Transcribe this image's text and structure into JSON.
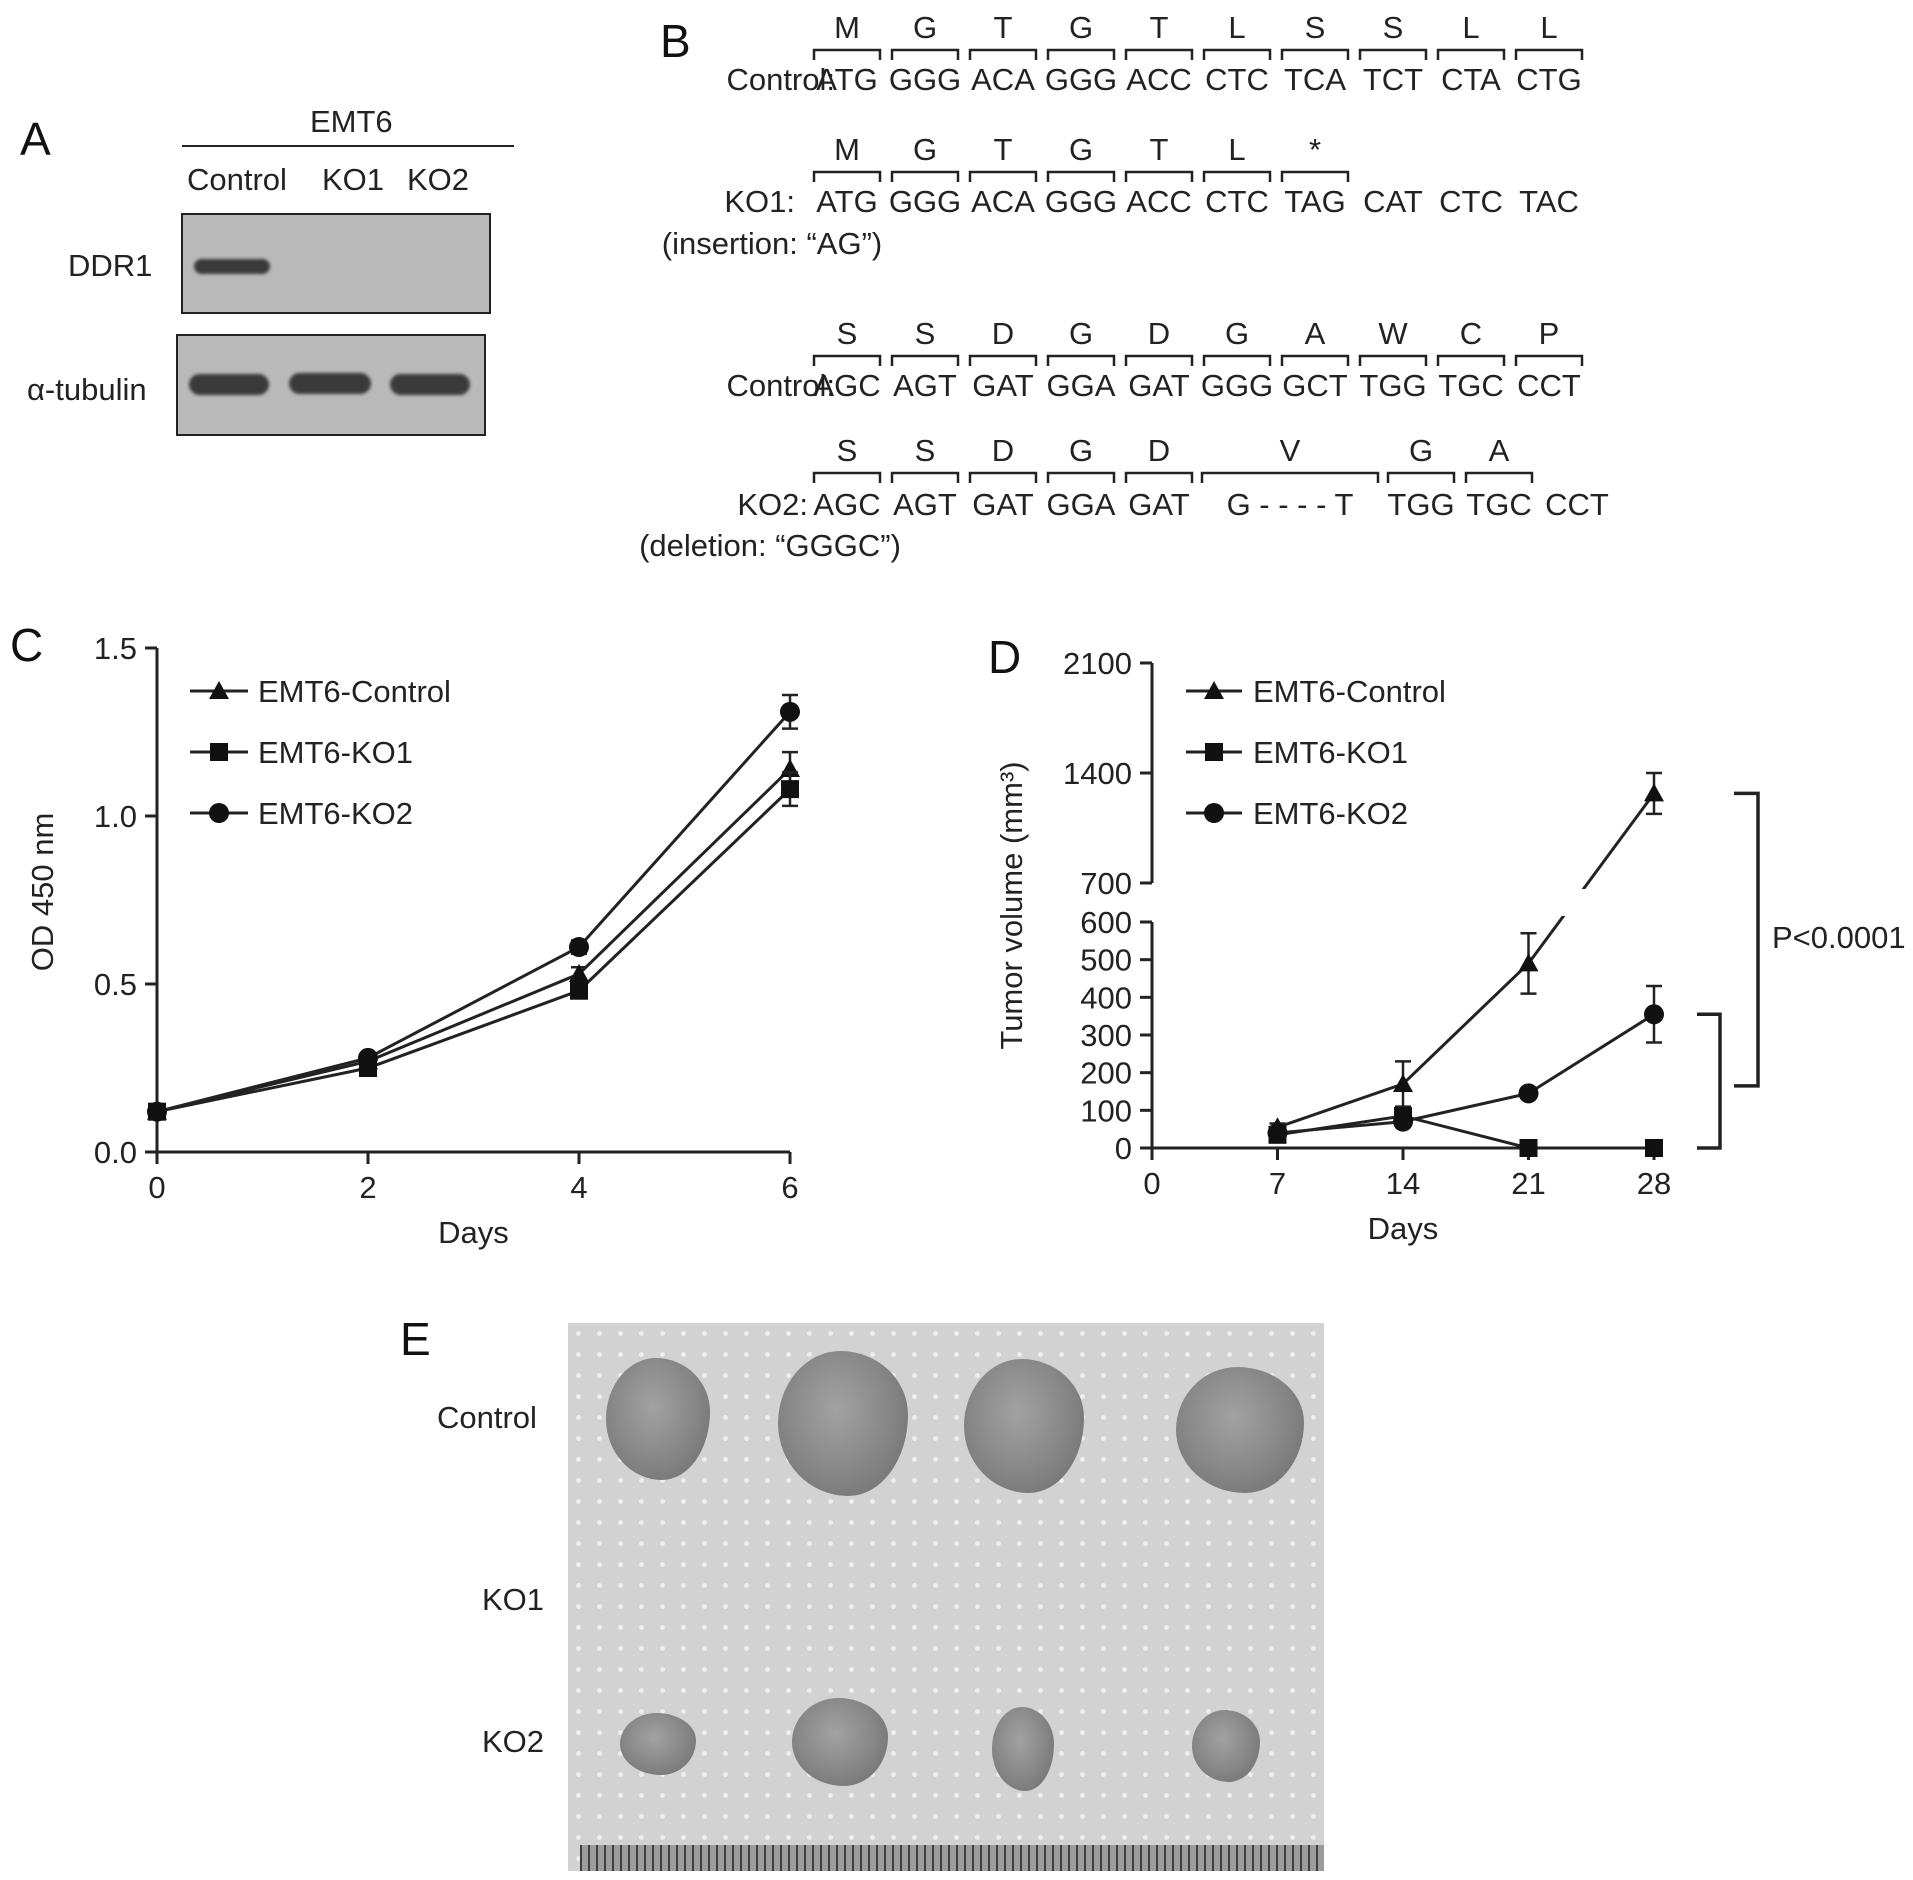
{
  "panels": {
    "A": "A",
    "B": "B",
    "C": "C",
    "D": "D",
    "E": "E"
  },
  "panelA": {
    "group_label": "EMT6",
    "lanes": [
      "Control",
      "KO1",
      "KO2"
    ],
    "rows": [
      "DDR1",
      "α-tubulin"
    ]
  },
  "panelB": {
    "blocks": [
      {
        "label": "Control:",
        "sublabel": "",
        "aa": [
          "M",
          "G",
          "T",
          "G",
          "T",
          "L",
          "S",
          "S",
          "L",
          "L"
        ],
        "codons": [
          "ATG",
          "GGG",
          "ACA",
          "GGG",
          "ACC",
          "CTC",
          "TCA",
          "TCT",
          "CTA",
          "CTG"
        ]
      },
      {
        "label": "KO1:",
        "sublabel": "(insertion: “AG”)",
        "aa": [
          "M",
          "G",
          "T",
          "G",
          "T",
          "L",
          "*"
        ],
        "codons": [
          "ATG",
          "GGG",
          "ACA",
          "GGG",
          "ACC",
          "CTC",
          "TAG",
          "CAT",
          "CTC",
          "TAC"
        ]
      },
      {
        "label": "Control:",
        "sublabel": "",
        "aa": [
          "S",
          "S",
          "D",
          "G",
          "D",
          "G",
          "A",
          "W",
          "C",
          "P"
        ],
        "codons": [
          "AGC",
          "AGT",
          "GAT",
          "GGA",
          "GAT",
          "GGG",
          "GCT",
          "TGG",
          "TGC",
          "CCT"
        ]
      },
      {
        "label": "KO2:",
        "sublabel": "(deletion: “GGGC”)",
        "aa": [
          "S",
          "S",
          "D",
          "G",
          "D",
          "V",
          "G",
          "A"
        ],
        "codons": [
          "AGC",
          "AGT",
          "GAT",
          "GGA",
          "GAT",
          "G - - - - T",
          "TGG",
          "TGC",
          "CCT"
        ]
      }
    ]
  },
  "chart_data": [
    {
      "type": "line",
      "panel": "C",
      "title": "",
      "xlabel": "Days",
      "ylabel": "OD 450 nm",
      "x": [
        0,
        2,
        4,
        6
      ],
      "xlim": [
        0,
        6
      ],
      "ylim": [
        0,
        1.5
      ],
      "xticks": [
        "0",
        "2",
        "4",
        "6"
      ],
      "yticks": [
        "0.0",
        "0.5",
        "1.0",
        "1.5"
      ],
      "legend": "top-left",
      "series": [
        {
          "name": "EMT6-Control",
          "marker": "triangle",
          "values": [
            0.12,
            0.27,
            0.53,
            1.14
          ],
          "errors": [
            0.01,
            0.01,
            0.02,
            0.05
          ]
        },
        {
          "name": "EMT6-KO1",
          "marker": "square",
          "values": [
            0.12,
            0.25,
            0.48,
            1.08
          ],
          "errors": [
            0.01,
            0.01,
            0.02,
            0.05
          ]
        },
        {
          "name": "EMT6-KO2",
          "marker": "circle",
          "values": [
            0.12,
            0.28,
            0.61,
            1.31
          ],
          "errors": [
            0.01,
            0.01,
            0.02,
            0.05
          ]
        }
      ]
    },
    {
      "type": "line",
      "panel": "D",
      "title": "",
      "xlabel": "Days",
      "ylabel": "Tumor volume (mm³)",
      "x": [
        7,
        14,
        21,
        28
      ],
      "xlim": [
        0,
        28
      ],
      "ylim": [
        0,
        2100
      ],
      "axis_break": [
        600,
        700
      ],
      "xticks": [
        "0",
        "7",
        "14",
        "21",
        "28"
      ],
      "yticks": [
        "0",
        "100",
        "200",
        "300",
        "400",
        "500",
        "600",
        "700",
        "1400",
        "2100"
      ],
      "legend": "top-left",
      "annotation": "P<0.0001",
      "series": [
        {
          "name": "EMT6-Control",
          "marker": "triangle",
          "values": [
            55,
            170,
            490,
            1270
          ],
          "errors": [
            10,
            60,
            80,
            130
          ]
        },
        {
          "name": "EMT6-KO1",
          "marker": "square",
          "values": [
            35,
            85,
            0,
            0
          ],
          "errors": [
            8,
            12,
            0,
            0
          ]
        },
        {
          "name": "EMT6-KO2",
          "marker": "circle",
          "values": [
            40,
            70,
            145,
            355
          ],
          "errors": [
            8,
            10,
            10,
            75
          ]
        }
      ]
    }
  ],
  "panelE": {
    "rows": [
      "Control",
      "KO1",
      "KO2"
    ]
  }
}
